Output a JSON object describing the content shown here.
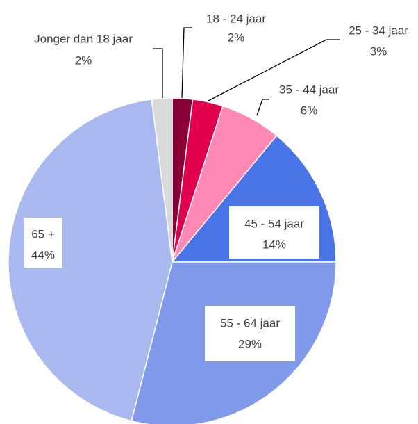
{
  "chart_data": {
    "type": "pie",
    "categories": [
      "18 - 24 jaar",
      "25 - 34 jaar",
      "35 - 44 jaar",
      "45 - 54 jaar",
      "55 - 64 jaar",
      "65 +",
      "Jonger dan 18 jaar"
    ],
    "values": [
      2,
      3,
      6,
      14,
      29,
      44,
      2
    ],
    "value_labels": [
      "2%",
      "3%",
      "6%",
      "14%",
      "29%",
      "44%",
      "2%"
    ],
    "colors": [
      "#8b0037",
      "#e0004e",
      "#ff88b4",
      "#4874e8",
      "#8099ea",
      "#a9b8ee",
      "#d9d9d9"
    ]
  }
}
